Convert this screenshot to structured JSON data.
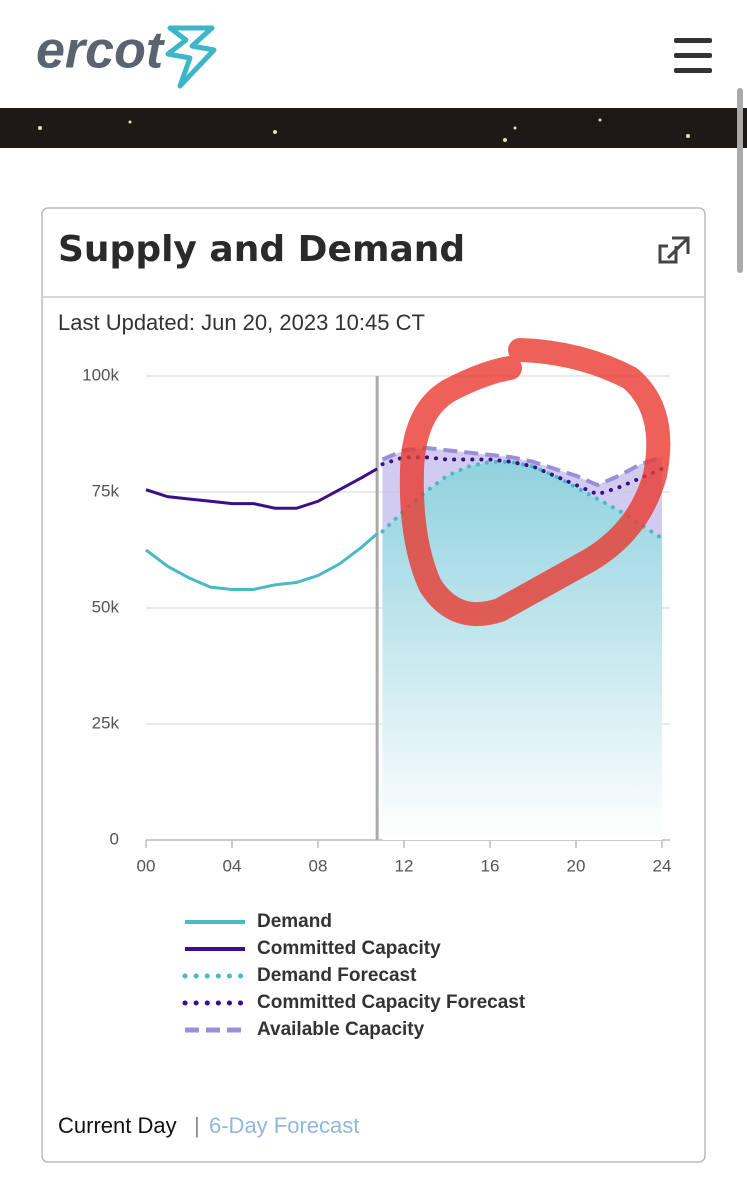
{
  "header": {
    "logo": "ercot"
  },
  "card": {
    "title": "Supply and Demand",
    "updated": "Last Updated: Jun 20, 2023 10:45 CT"
  },
  "chart_data": {
    "type": "line",
    "xlim": [
      0,
      24
    ],
    "xticks": [
      {
        "value": 0,
        "label": "00"
      },
      {
        "value": 4,
        "label": "04"
      },
      {
        "value": 8,
        "label": "08"
      },
      12,
      16,
      20,
      24
    ],
    "ylim": [
      0,
      100000
    ],
    "yticks": [
      0,
      {
        "value": 25000,
        "label": "25k"
      },
      {
        "value": 50000,
        "label": "50k"
      },
      {
        "value": 75000,
        "label": "75k"
      },
      {
        "value": 100000,
        "label": "100k"
      }
    ],
    "grid": true,
    "series": [
      {
        "name": "Demand",
        "color": "#4bb8c8",
        "style": "solid",
        "x": [
          0,
          1,
          2,
          3,
          4,
          5,
          6,
          7,
          8,
          9,
          10,
          10.75
        ],
        "values": [
          62500,
          59000,
          56500,
          54500,
          54000,
          54000,
          55000,
          55500,
          57000,
          59500,
          63000,
          66000
        ]
      },
      {
        "name": "Committed Capacity",
        "color": "#3b0f8c",
        "style": "solid",
        "x": [
          0,
          1,
          2,
          3,
          4,
          5,
          6,
          7,
          8,
          9,
          10,
          10.75
        ],
        "values": [
          75500,
          74000,
          73500,
          73000,
          72500,
          72500,
          71500,
          71500,
          73000,
          75500,
          78000,
          80000
        ]
      },
      {
        "name": "Demand Forecast",
        "color": "#4bb8c8",
        "style": "dotted",
        "x": [
          11,
          12,
          13,
          14,
          15,
          16,
          17,
          18,
          19,
          20,
          21,
          22,
          23,
          24
        ],
        "values": [
          66500,
          71000,
          75000,
          78500,
          80500,
          81500,
          81500,
          80500,
          78500,
          76000,
          73500,
          71000,
          68000,
          65000
        ]
      },
      {
        "name": "Committed Capacity Forecast",
        "color": "#3b0f8c",
        "style": "dotted",
        "x": [
          11,
          12,
          13,
          14,
          15,
          16,
          17,
          18,
          19,
          20,
          21,
          22,
          23,
          24
        ],
        "values": [
          81000,
          82500,
          82500,
          82000,
          82000,
          82000,
          81500,
          80500,
          78500,
          76500,
          74500,
          76000,
          78000,
          80000
        ]
      },
      {
        "name": "Available Capacity",
        "color": "#9a8fd8",
        "style": "dashed",
        "x": [
          11,
          12,
          13,
          14,
          15,
          16,
          17,
          18,
          19,
          20,
          21,
          22,
          23,
          24
        ],
        "values": [
          82000,
          84000,
          84500,
          84000,
          83500,
          83000,
          82500,
          81500,
          80000,
          78500,
          76500,
          78500,
          81000,
          82500
        ]
      }
    ]
  },
  "footer": {
    "current": "Current Day",
    "separator": "|",
    "forecast": "6-Day Forecast"
  }
}
